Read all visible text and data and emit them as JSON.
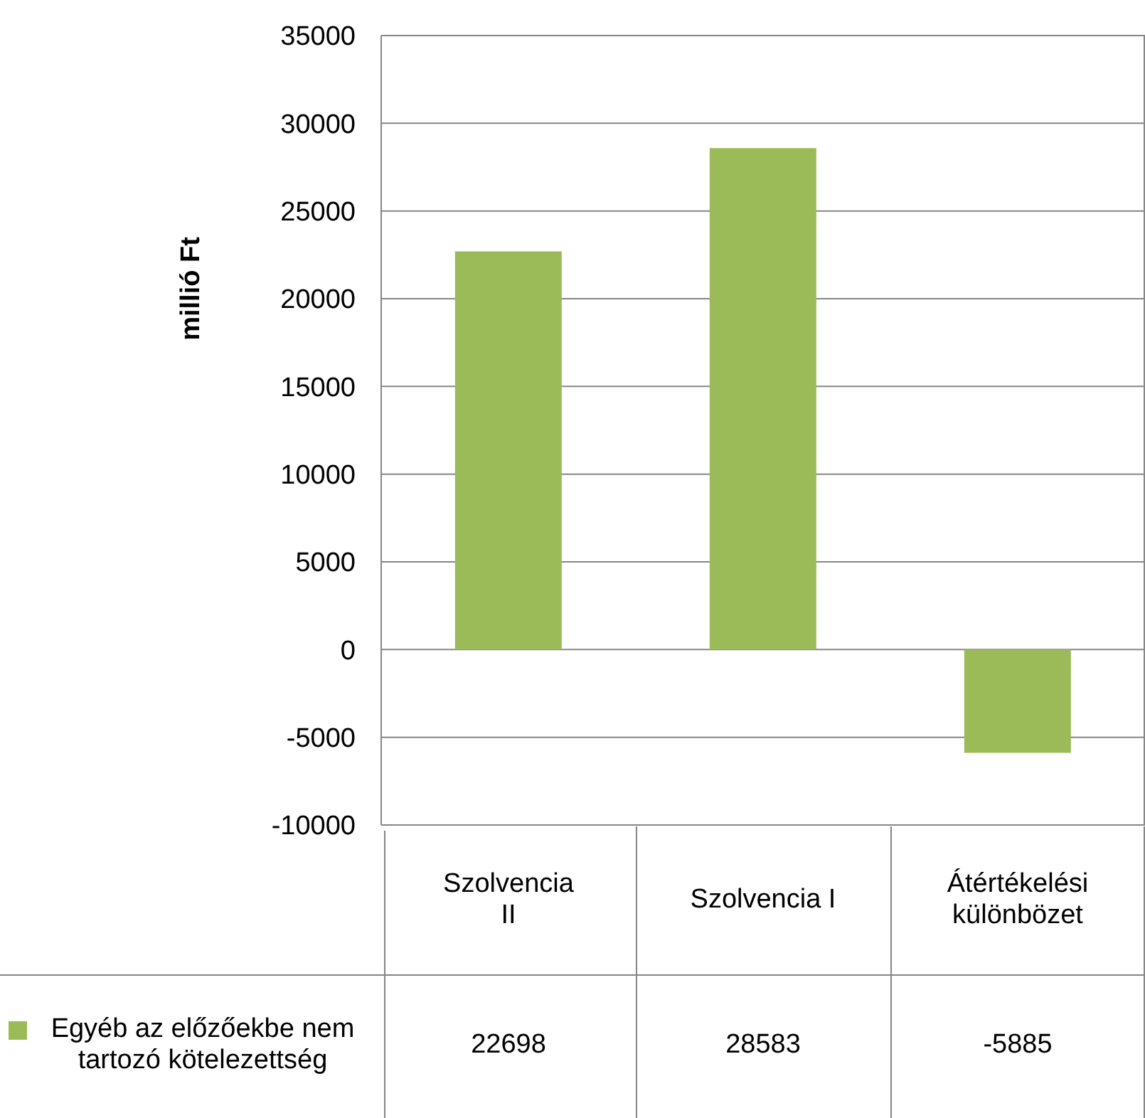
{
  "chart_data": {
    "type": "bar",
    "ylabel": "millió Ft",
    "categories": [
      "Szolvencia II",
      "Szolvencia I",
      "Átértékelési különbözet"
    ],
    "series": [
      {
        "name": "Egyéb az előzőekbe nem tartozó kötelezettség",
        "color": "#9bbb59",
        "values": [
          22698,
          28583,
          -5885
        ]
      }
    ],
    "ylim": [
      -10000,
      35000
    ],
    "yticks": [
      -10000,
      -5000,
      0,
      5000,
      10000,
      15000,
      20000,
      25000,
      30000,
      35000
    ],
    "grid": "y",
    "data_labels": true,
    "legend": "bottom left"
  }
}
